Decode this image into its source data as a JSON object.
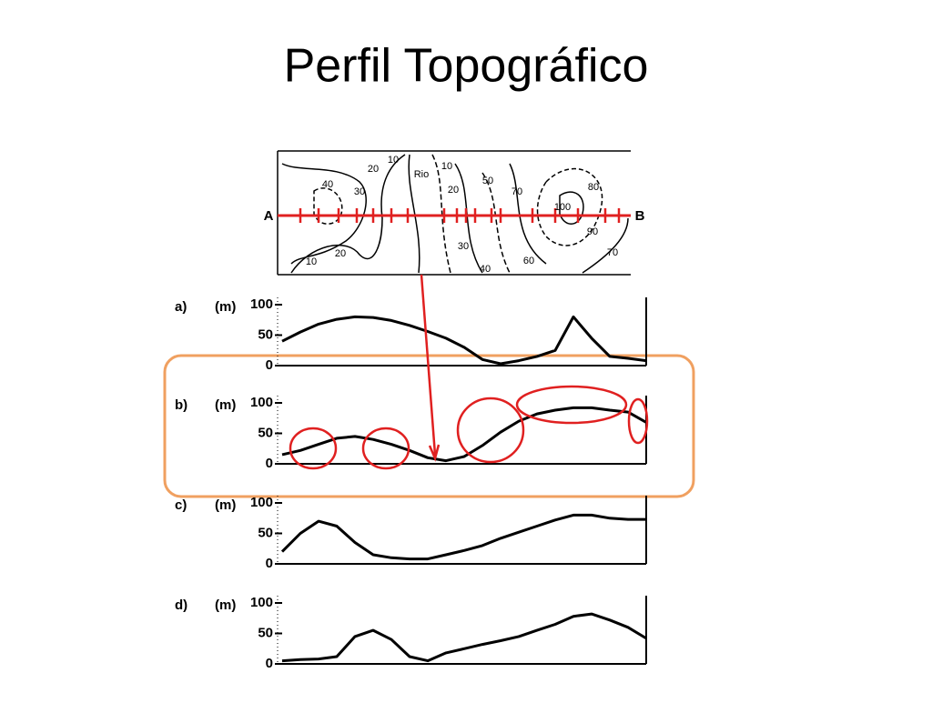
{
  "title": "Perfil Topográfico",
  "map": {
    "start": "A",
    "end": "B",
    "labels": [
      "10",
      "20",
      "40",
      "30",
      "20",
      "10",
      "Rio",
      "10",
      "20",
      "50",
      "70",
      "100",
      "80",
      "90",
      "70",
      "30",
      "60",
      "40"
    ]
  },
  "profiles": [
    {
      "label": "a)",
      "unit": "(m)",
      "yticks": [
        0,
        50,
        100
      ],
      "ylim": [
        0,
        100
      ],
      "values": [
        40,
        55,
        68,
        76,
        80,
        79,
        74,
        66,
        56,
        45,
        30,
        10,
        3,
        8,
        15,
        25,
        80,
        45,
        15,
        12,
        8
      ]
    },
    {
      "label": "b)",
      "unit": "(m)",
      "yticks": [
        0,
        50,
        100
      ],
      "ylim": [
        0,
        100
      ],
      "values": [
        15,
        22,
        32,
        42,
        45,
        40,
        32,
        22,
        10,
        5,
        12,
        30,
        52,
        70,
        82,
        88,
        92,
        92,
        88,
        85,
        68
      ]
    },
    {
      "label": "c)",
      "unit": "(m)",
      "yticks": [
        0,
        50,
        100
      ],
      "ylim": [
        0,
        100
      ],
      "values": [
        20,
        50,
        70,
        62,
        35,
        15,
        10,
        8,
        8,
        15,
        22,
        30,
        42,
        52,
        62,
        72,
        80,
        80,
        75,
        73,
        73
      ]
    },
    {
      "label": "d)",
      "unit": "(m)",
      "yticks": [
        0,
        50,
        100
      ],
      "ylim": [
        0,
        100
      ],
      "values": [
        5,
        7,
        8,
        12,
        45,
        55,
        40,
        12,
        5,
        18,
        25,
        32,
        38,
        45,
        55,
        65,
        78,
        82,
        72,
        60,
        42
      ]
    }
  ]
}
